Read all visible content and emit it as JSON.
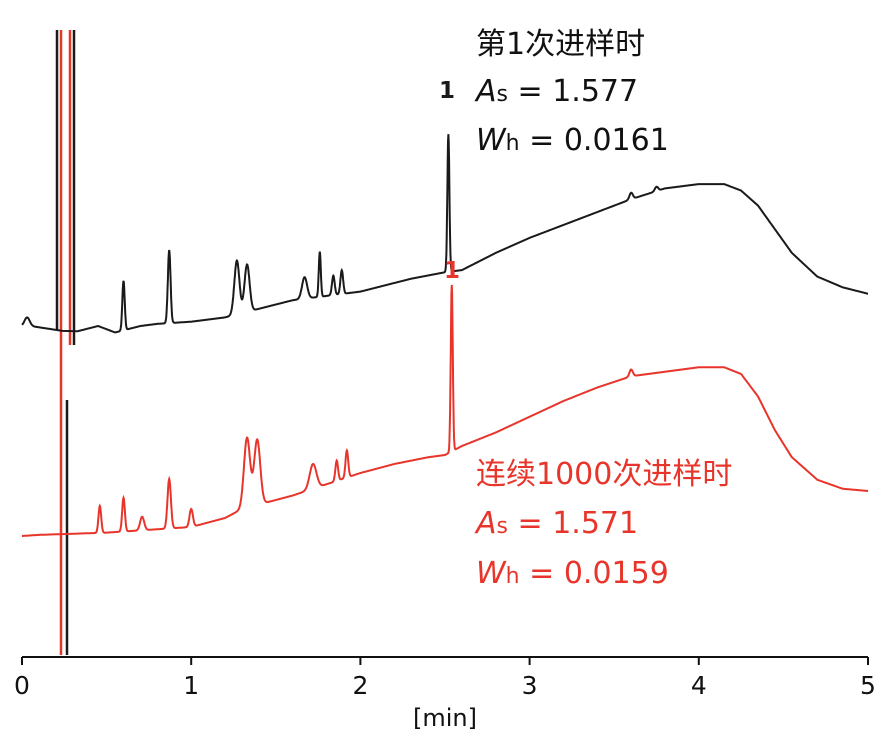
{
  "chart_data": {
    "type": "line",
    "xlabel": "[min]",
    "xlim": [
      0,
      5
    ],
    "x_ticks": [
      "0",
      "1",
      "2",
      "3",
      "4",
      "5"
    ],
    "grid": false,
    "colors": {
      "black": "#1a1a1a",
      "red": "#e8352b",
      "axis": "#111111"
    },
    "series": [
      {
        "color": "black",
        "peak_label": "1",
        "baseline": [
          [
            0.0,
            0.0
          ],
          [
            0.05,
            0.0
          ],
          [
            0.3,
            -0.3
          ],
          [
            0.45,
            0.0
          ],
          [
            0.55,
            -0.3
          ],
          [
            0.7,
            0.0
          ],
          [
            0.8,
            0.1
          ],
          [
            1.0,
            0.2
          ],
          [
            1.2,
            0.4
          ],
          [
            1.4,
            0.8
          ],
          [
            1.6,
            1.2
          ],
          [
            1.8,
            1.4
          ],
          [
            2.0,
            1.6
          ],
          [
            2.3,
            2.2
          ],
          [
            2.5,
            2.5
          ],
          [
            2.6,
            2.6
          ],
          [
            2.8,
            3.4
          ],
          [
            3.0,
            4.1
          ],
          [
            3.2,
            4.7
          ],
          [
            3.4,
            5.3
          ],
          [
            3.6,
            5.9
          ],
          [
            3.8,
            6.4
          ],
          [
            4.0,
            6.6
          ],
          [
            4.15,
            6.6
          ],
          [
            4.25,
            6.3
          ],
          [
            4.35,
            5.6
          ],
          [
            4.45,
            4.5
          ],
          [
            4.55,
            3.4
          ],
          [
            4.7,
            2.3
          ],
          [
            4.85,
            1.8
          ],
          [
            5.0,
            1.5
          ]
        ],
        "peaks": [
          {
            "t": 0.03,
            "h": 0.4,
            "w": 0.015
          },
          {
            "t": 0.6,
            "h": 2.3,
            "w": 0.007
          },
          {
            "t": 0.87,
            "h": 3.4,
            "w": 0.008
          },
          {
            "t": 1.27,
            "h": 2.5,
            "w": 0.015
          },
          {
            "t": 1.33,
            "h": 2.2,
            "w": 0.015
          },
          {
            "t": 1.67,
            "h": 1.0,
            "w": 0.015
          },
          {
            "t": 1.76,
            "h": 2.1,
            "w": 0.006
          },
          {
            "t": 1.84,
            "h": 0.9,
            "w": 0.008
          },
          {
            "t": 1.89,
            "h": 1.1,
            "w": 0.008
          },
          {
            "t": 2.52,
            "h": 6.4,
            "w": 0.006
          },
          {
            "t": 3.6,
            "h": 0.3,
            "w": 0.01
          },
          {
            "t": 3.75,
            "h": 0.2,
            "w": 0.01
          }
        ],
        "annotation": {
          "run_label": "第1次进样时",
          "asym": {
            "symbol": "A",
            "sub": "s",
            "value": " = 1.577"
          },
          "width": {
            "symbol": "W",
            "sub": "h",
            "value": " = 0.0161"
          }
        }
      },
      {
        "color": "red",
        "peak_label": "1",
        "baseline": [
          [
            0.0,
            0.0
          ],
          [
            0.1,
            0.05
          ],
          [
            0.3,
            0.1
          ],
          [
            0.5,
            0.15
          ],
          [
            0.8,
            0.3
          ],
          [
            1.0,
            0.4
          ],
          [
            1.2,
            0.8
          ],
          [
            1.3,
            1.2
          ],
          [
            1.4,
            1.4
          ],
          [
            1.6,
            1.8
          ],
          [
            1.8,
            2.3
          ],
          [
            2.0,
            2.8
          ],
          [
            2.2,
            3.2
          ],
          [
            2.4,
            3.5
          ],
          [
            2.5,
            3.6
          ],
          [
            2.6,
            4.0
          ],
          [
            2.8,
            4.6
          ],
          [
            3.0,
            5.3
          ],
          [
            3.2,
            6.0
          ],
          [
            3.4,
            6.6
          ],
          [
            3.6,
            7.1
          ],
          [
            3.8,
            7.3
          ],
          [
            4.0,
            7.5
          ],
          [
            4.15,
            7.5
          ],
          [
            4.25,
            7.2
          ],
          [
            4.35,
            6.2
          ],
          [
            4.45,
            4.7
          ],
          [
            4.55,
            3.5
          ],
          [
            4.7,
            2.5
          ],
          [
            4.85,
            2.1
          ],
          [
            5.0,
            2.0
          ]
        ],
        "peaks": [
          {
            "t": 0.46,
            "h": 1.2,
            "w": 0.008
          },
          {
            "t": 0.6,
            "h": 1.5,
            "w": 0.008
          },
          {
            "t": 0.71,
            "h": 0.6,
            "w": 0.012
          },
          {
            "t": 0.87,
            "h": 2.2,
            "w": 0.01
          },
          {
            "t": 1.0,
            "h": 0.8,
            "w": 0.01
          },
          {
            "t": 1.33,
            "h": 3.1,
            "w": 0.018
          },
          {
            "t": 1.39,
            "h": 2.9,
            "w": 0.018
          },
          {
            "t": 1.72,
            "h": 1.1,
            "w": 0.02
          },
          {
            "t": 1.86,
            "h": 0.9,
            "w": 0.008
          },
          {
            "t": 1.92,
            "h": 1.2,
            "w": 0.008
          },
          {
            "t": 2.54,
            "h": 7.4,
            "w": 0.006
          },
          {
            "t": 3.6,
            "h": 0.3,
            "w": 0.01
          }
        ],
        "annotation": {
          "run_label": "连续1000次进样时",
          "asym": {
            "symbol": "A",
            "sub": "s",
            "value": " = 1.571"
          },
          "width": {
            "symbol": "W",
            "sub": "h",
            "value": " = 0.0159"
          }
        }
      }
    ]
  }
}
